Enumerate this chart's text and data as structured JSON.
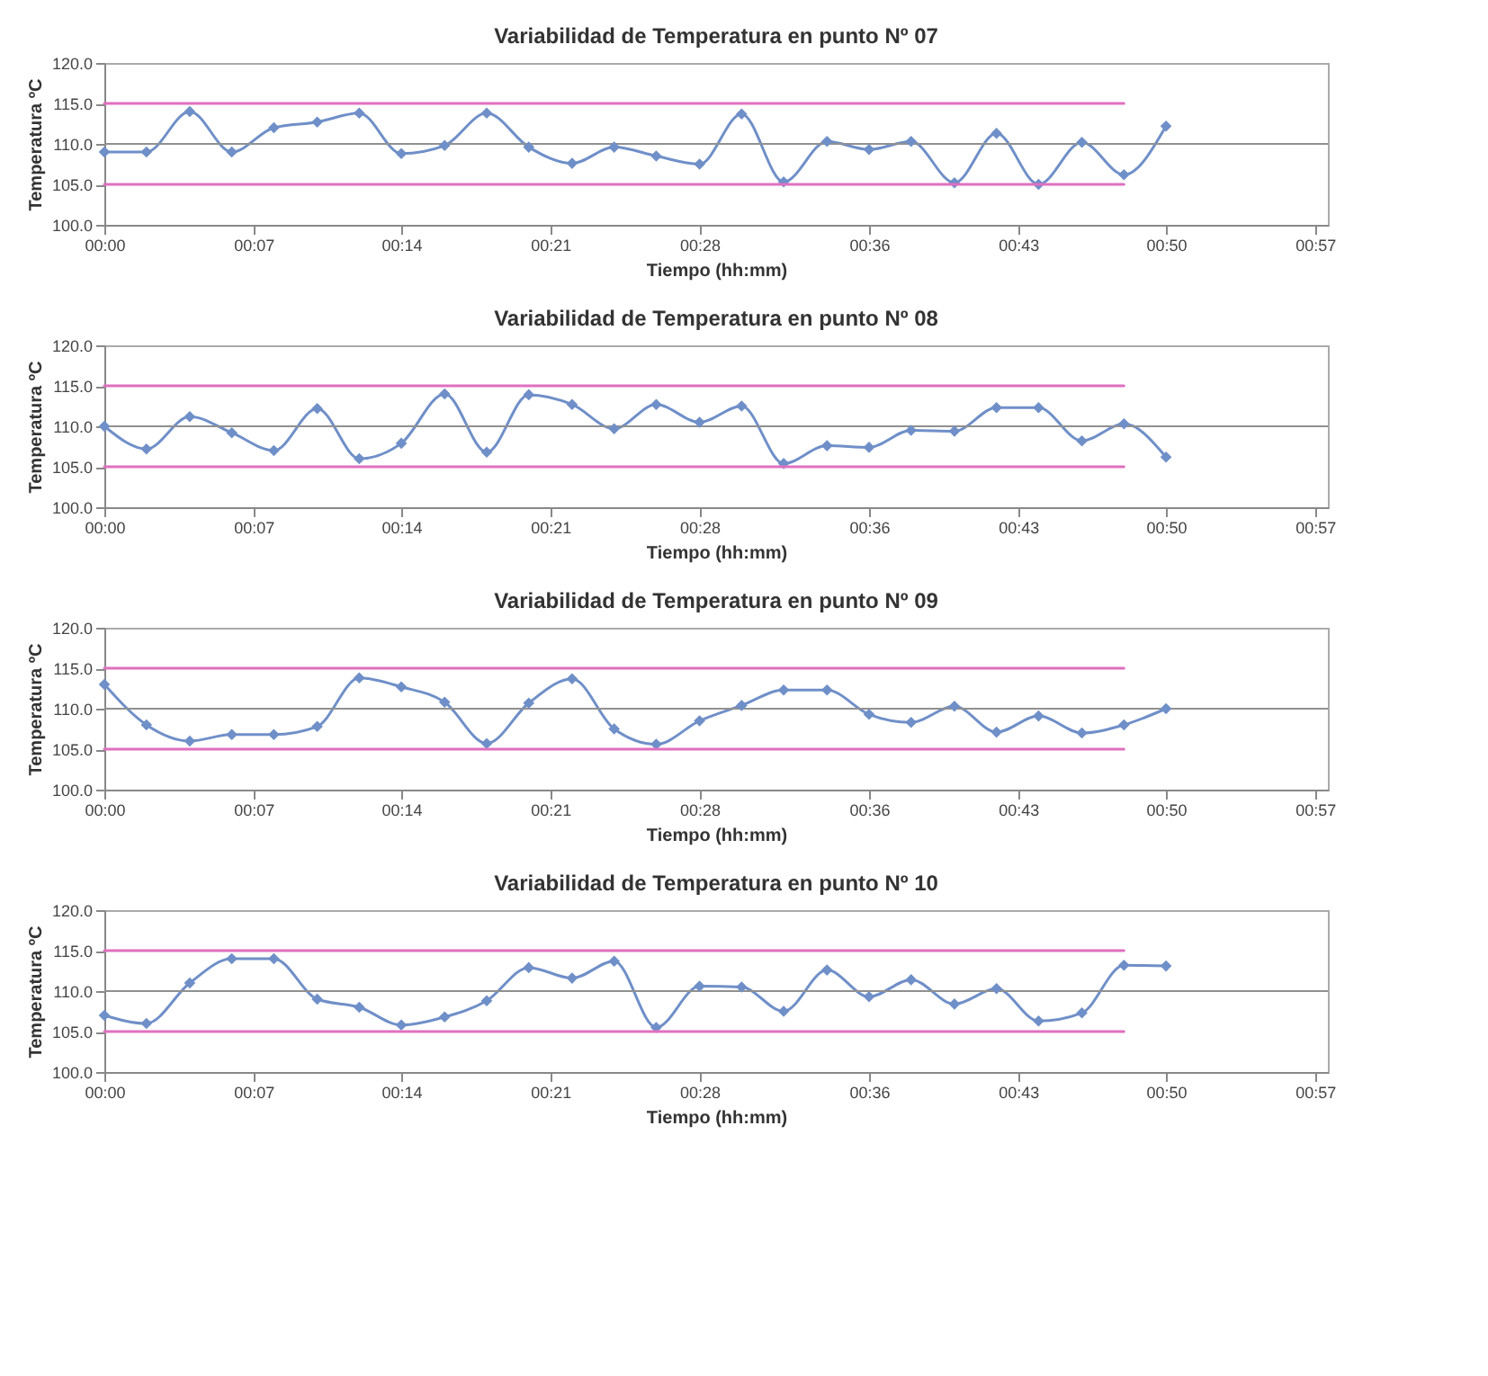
{
  "chart_data": [
    {
      "type": "line",
      "title": "Variabilidad de Temperatura en punto Nº 07",
      "xlabel": "Tiempo  (hh:mm)",
      "ylabel": "Temperatura ºC",
      "marker": "diamond",
      "grid": false,
      "x": [
        0,
        0.033,
        0.067,
        0.1,
        0.133,
        0.167,
        0.2,
        0.233,
        0.267,
        0.3,
        0.333,
        0.367,
        0.4,
        0.433,
        0.467,
        0.5,
        0.533,
        0.567,
        0.6,
        0.633,
        0.667,
        0.7,
        0.733,
        0.767,
        0.8,
        0.833
      ],
      "xlim": [
        0,
        0.96
      ],
      "xticks": [
        {
          "value": 0,
          "label": "00:00"
        },
        {
          "value": 0.117,
          "label": "00:07"
        },
        {
          "value": 0.233,
          "label": "00:14"
        },
        {
          "value": 0.35,
          "label": "00:21"
        },
        {
          "value": 0.467,
          "label": "00:28"
        },
        {
          "value": 0.6,
          "label": "00:36"
        },
        {
          "value": 0.717,
          "label": "00:43"
        },
        {
          "value": 0.833,
          "label": "00:50"
        },
        {
          "value": 0.95,
          "label": "00:57"
        }
      ],
      "ylim": [
        100,
        120
      ],
      "yticks": [
        {
          "value": 100,
          "label": "100.0"
        },
        {
          "value": 105,
          "label": "105.0"
        },
        {
          "value": 110,
          "label": "110.0"
        },
        {
          "value": 115,
          "label": "115.0"
        },
        {
          "value": 120,
          "label": "120.0"
        }
      ],
      "ref_lines": [
        {
          "axis": "y",
          "value": 110,
          "color": "#909090"
        }
      ],
      "series": [
        {
          "color": "#6f8fc8",
          "values": [
            109,
            109,
            114,
            109,
            112,
            112.7,
            113.8,
            108.8,
            109.8,
            113.8,
            109.6,
            107.6,
            109.6,
            108.5,
            107.5,
            113.7,
            105.3,
            110.3,
            109.3,
            110.3,
            105.2,
            111.3,
            105,
            110.2,
            106.2,
            112.2
          ]
        },
        {
          "color": "#e070c0",
          "marker": "none",
          "values": [
            115,
            115,
            115,
            115,
            115,
            115,
            115,
            115,
            115,
            115,
            115,
            115,
            115,
            115,
            115,
            115,
            115,
            115,
            115,
            115,
            115,
            115,
            115,
            115,
            115,
            null
          ]
        },
        {
          "color": "#e070c0",
          "marker": "none",
          "values": [
            105,
            105,
            105,
            105,
            105,
            105,
            105,
            105,
            105,
            105,
            105,
            105,
            105,
            105,
            105,
            105,
            105,
            105,
            105,
            105,
            105,
            105,
            105,
            105,
            105,
            null
          ]
        }
      ]
    },
    {
      "type": "line",
      "title": "Variabilidad de Temperatura en punto Nº 08",
      "xlabel": "Tiempo  (hh:mm)",
      "ylabel": "Temperatura ºC",
      "marker": "diamond",
      "grid": false,
      "x": [
        0,
        0.033,
        0.067,
        0.1,
        0.133,
        0.167,
        0.2,
        0.233,
        0.267,
        0.3,
        0.333,
        0.367,
        0.4,
        0.433,
        0.467,
        0.5,
        0.533,
        0.567,
        0.6,
        0.633,
        0.667,
        0.7,
        0.733,
        0.767,
        0.8,
        0.833
      ],
      "xlim": [
        0,
        0.96
      ],
      "xticks": [
        {
          "value": 0,
          "label": "00:00"
        },
        {
          "value": 0.117,
          "label": "00:07"
        },
        {
          "value": 0.233,
          "label": "00:14"
        },
        {
          "value": 0.35,
          "label": "00:21"
        },
        {
          "value": 0.467,
          "label": "00:28"
        },
        {
          "value": 0.6,
          "label": "00:36"
        },
        {
          "value": 0.717,
          "label": "00:43"
        },
        {
          "value": 0.833,
          "label": "00:50"
        },
        {
          "value": 0.95,
          "label": "00:57"
        }
      ],
      "ylim": [
        100,
        120
      ],
      "yticks": [
        {
          "value": 100,
          "label": "100.0"
        },
        {
          "value": 105,
          "label": "105.0"
        },
        {
          "value": 110,
          "label": "110.0"
        },
        {
          "value": 115,
          "label": "115.0"
        },
        {
          "value": 120,
          "label": "120.0"
        }
      ],
      "ref_lines": [
        {
          "axis": "y",
          "value": 110,
          "color": "#909090"
        }
      ],
      "series": [
        {
          "color": "#6f8fc8",
          "values": [
            110,
            107.2,
            111.2,
            109.2,
            107,
            112.2,
            106,
            107.9,
            114,
            106.8,
            113.9,
            112.7,
            109.7,
            112.7,
            110.5,
            112.5,
            105.4,
            107.6,
            107.4,
            109.5,
            109.4,
            112.3,
            112.3,
            108.2,
            110.3,
            106.2
          ]
        },
        {
          "color": "#e070c0",
          "marker": "none",
          "values": [
            115,
            115,
            115,
            115,
            115,
            115,
            115,
            115,
            115,
            115,
            115,
            115,
            115,
            115,
            115,
            115,
            115,
            115,
            115,
            115,
            115,
            115,
            115,
            115,
            115,
            null
          ]
        },
        {
          "color": "#e070c0",
          "marker": "none",
          "values": [
            105,
            105,
            105,
            105,
            105,
            105,
            105,
            105,
            105,
            105,
            105,
            105,
            105,
            105,
            105,
            105,
            105,
            105,
            105,
            105,
            105,
            105,
            105,
            105,
            105,
            null
          ]
        }
      ]
    },
    {
      "type": "line",
      "title": "Variabilidad de Temperatura en punto Nº 09",
      "xlabel": "Tiempo  (hh:mm)",
      "ylabel": "Temperatura ºC",
      "marker": "diamond",
      "grid": false,
      "x": [
        0,
        0.033,
        0.067,
        0.1,
        0.133,
        0.167,
        0.2,
        0.233,
        0.267,
        0.3,
        0.333,
        0.367,
        0.4,
        0.433,
        0.467,
        0.5,
        0.533,
        0.567,
        0.6,
        0.633,
        0.667,
        0.7,
        0.733,
        0.767,
        0.8,
        0.833
      ],
      "xlim": [
        0,
        0.96
      ],
      "xticks": [
        {
          "value": 0,
          "label": "00:00"
        },
        {
          "value": 0.117,
          "label": "00:07"
        },
        {
          "value": 0.233,
          "label": "00:14"
        },
        {
          "value": 0.35,
          "label": "00:21"
        },
        {
          "value": 0.467,
          "label": "00:28"
        },
        {
          "value": 0.6,
          "label": "00:36"
        },
        {
          "value": 0.717,
          "label": "00:43"
        },
        {
          "value": 0.833,
          "label": "00:50"
        },
        {
          "value": 0.95,
          "label": "00:57"
        }
      ],
      "ylim": [
        100,
        120
      ],
      "yticks": [
        {
          "value": 100,
          "label": "100.0"
        },
        {
          "value": 105,
          "label": "105.0"
        },
        {
          "value": 110,
          "label": "110.0"
        },
        {
          "value": 115,
          "label": "115.0"
        },
        {
          "value": 120,
          "label": "120.0"
        }
      ],
      "ref_lines": [
        {
          "axis": "y",
          "value": 110,
          "color": "#909090"
        }
      ],
      "series": [
        {
          "color": "#6f8fc8",
          "values": [
            113,
            108,
            106,
            106.8,
            106.8,
            107.8,
            113.8,
            112.7,
            110.8,
            105.7,
            110.7,
            113.7,
            107.5,
            105.6,
            108.5,
            110.4,
            112.3,
            112.3,
            109.3,
            108.3,
            110.3,
            107.1,
            109.1,
            107,
            108,
            110
          ]
        },
        {
          "color": "#e070c0",
          "marker": "none",
          "values": [
            115,
            115,
            115,
            115,
            115,
            115,
            115,
            115,
            115,
            115,
            115,
            115,
            115,
            115,
            115,
            115,
            115,
            115,
            115,
            115,
            115,
            115,
            115,
            115,
            115,
            null
          ]
        },
        {
          "color": "#e070c0",
          "marker": "none",
          "values": [
            105,
            105,
            105,
            105,
            105,
            105,
            105,
            105,
            105,
            105,
            105,
            105,
            105,
            105,
            105,
            105,
            105,
            105,
            105,
            105,
            105,
            105,
            105,
            105,
            105,
            null
          ]
        }
      ]
    },
    {
      "type": "line",
      "title": "Variabilidad de Temperatura en punto Nº 10",
      "xlabel": "Tiempo  (hh:mm)",
      "ylabel": "Temperatura ºC",
      "marker": "diamond",
      "grid": false,
      "x": [
        0,
        0.033,
        0.067,
        0.1,
        0.133,
        0.167,
        0.2,
        0.233,
        0.267,
        0.3,
        0.333,
        0.367,
        0.4,
        0.433,
        0.467,
        0.5,
        0.533,
        0.567,
        0.6,
        0.633,
        0.667,
        0.7,
        0.733,
        0.767,
        0.8,
        0.833
      ],
      "xlim": [
        0,
        0.96
      ],
      "xticks": [
        {
          "value": 0,
          "label": "00:00"
        },
        {
          "value": 0.117,
          "label": "00:07"
        },
        {
          "value": 0.233,
          "label": "00:14"
        },
        {
          "value": 0.35,
          "label": "00:21"
        },
        {
          "value": 0.467,
          "label": "00:28"
        },
        {
          "value": 0.6,
          "label": "00:36"
        },
        {
          "value": 0.717,
          "label": "00:43"
        },
        {
          "value": 0.833,
          "label": "00:50"
        },
        {
          "value": 0.95,
          "label": "00:57"
        }
      ],
      "ylim": [
        100,
        120
      ],
      "yticks": [
        {
          "value": 100,
          "label": "100.0"
        },
        {
          "value": 105,
          "label": "105.0"
        },
        {
          "value": 110,
          "label": "110.0"
        },
        {
          "value": 115,
          "label": "115.0"
        },
        {
          "value": 120,
          "label": "120.0"
        }
      ],
      "ref_lines": [
        {
          "axis": "y",
          "value": 110,
          "color": "#909090"
        }
      ],
      "series": [
        {
          "color": "#6f8fc8",
          "values": [
            107,
            106,
            111,
            114,
            114,
            109,
            108,
            105.8,
            106.8,
            108.8,
            112.9,
            111.6,
            113.7,
            105.5,
            110.6,
            110.5,
            107.5,
            112.6,
            109.3,
            111.4,
            108.4,
            110.3,
            106.3,
            107.3,
            113.2,
            113.1
          ]
        },
        {
          "color": "#e070c0",
          "marker": "none",
          "values": [
            115,
            115,
            115,
            115,
            115,
            115,
            115,
            115,
            115,
            115,
            115,
            115,
            115,
            115,
            115,
            115,
            115,
            115,
            115,
            115,
            115,
            115,
            115,
            115,
            115,
            null
          ]
        },
        {
          "color": "#e070c0",
          "marker": "none",
          "values": [
            105,
            105,
            105,
            105,
            105,
            105,
            105,
            105,
            105,
            105,
            105,
            105,
            105,
            105,
            105,
            105,
            105,
            105,
            105,
            105,
            105,
            105,
            105,
            105,
            105,
            null
          ]
        }
      ]
    }
  ]
}
